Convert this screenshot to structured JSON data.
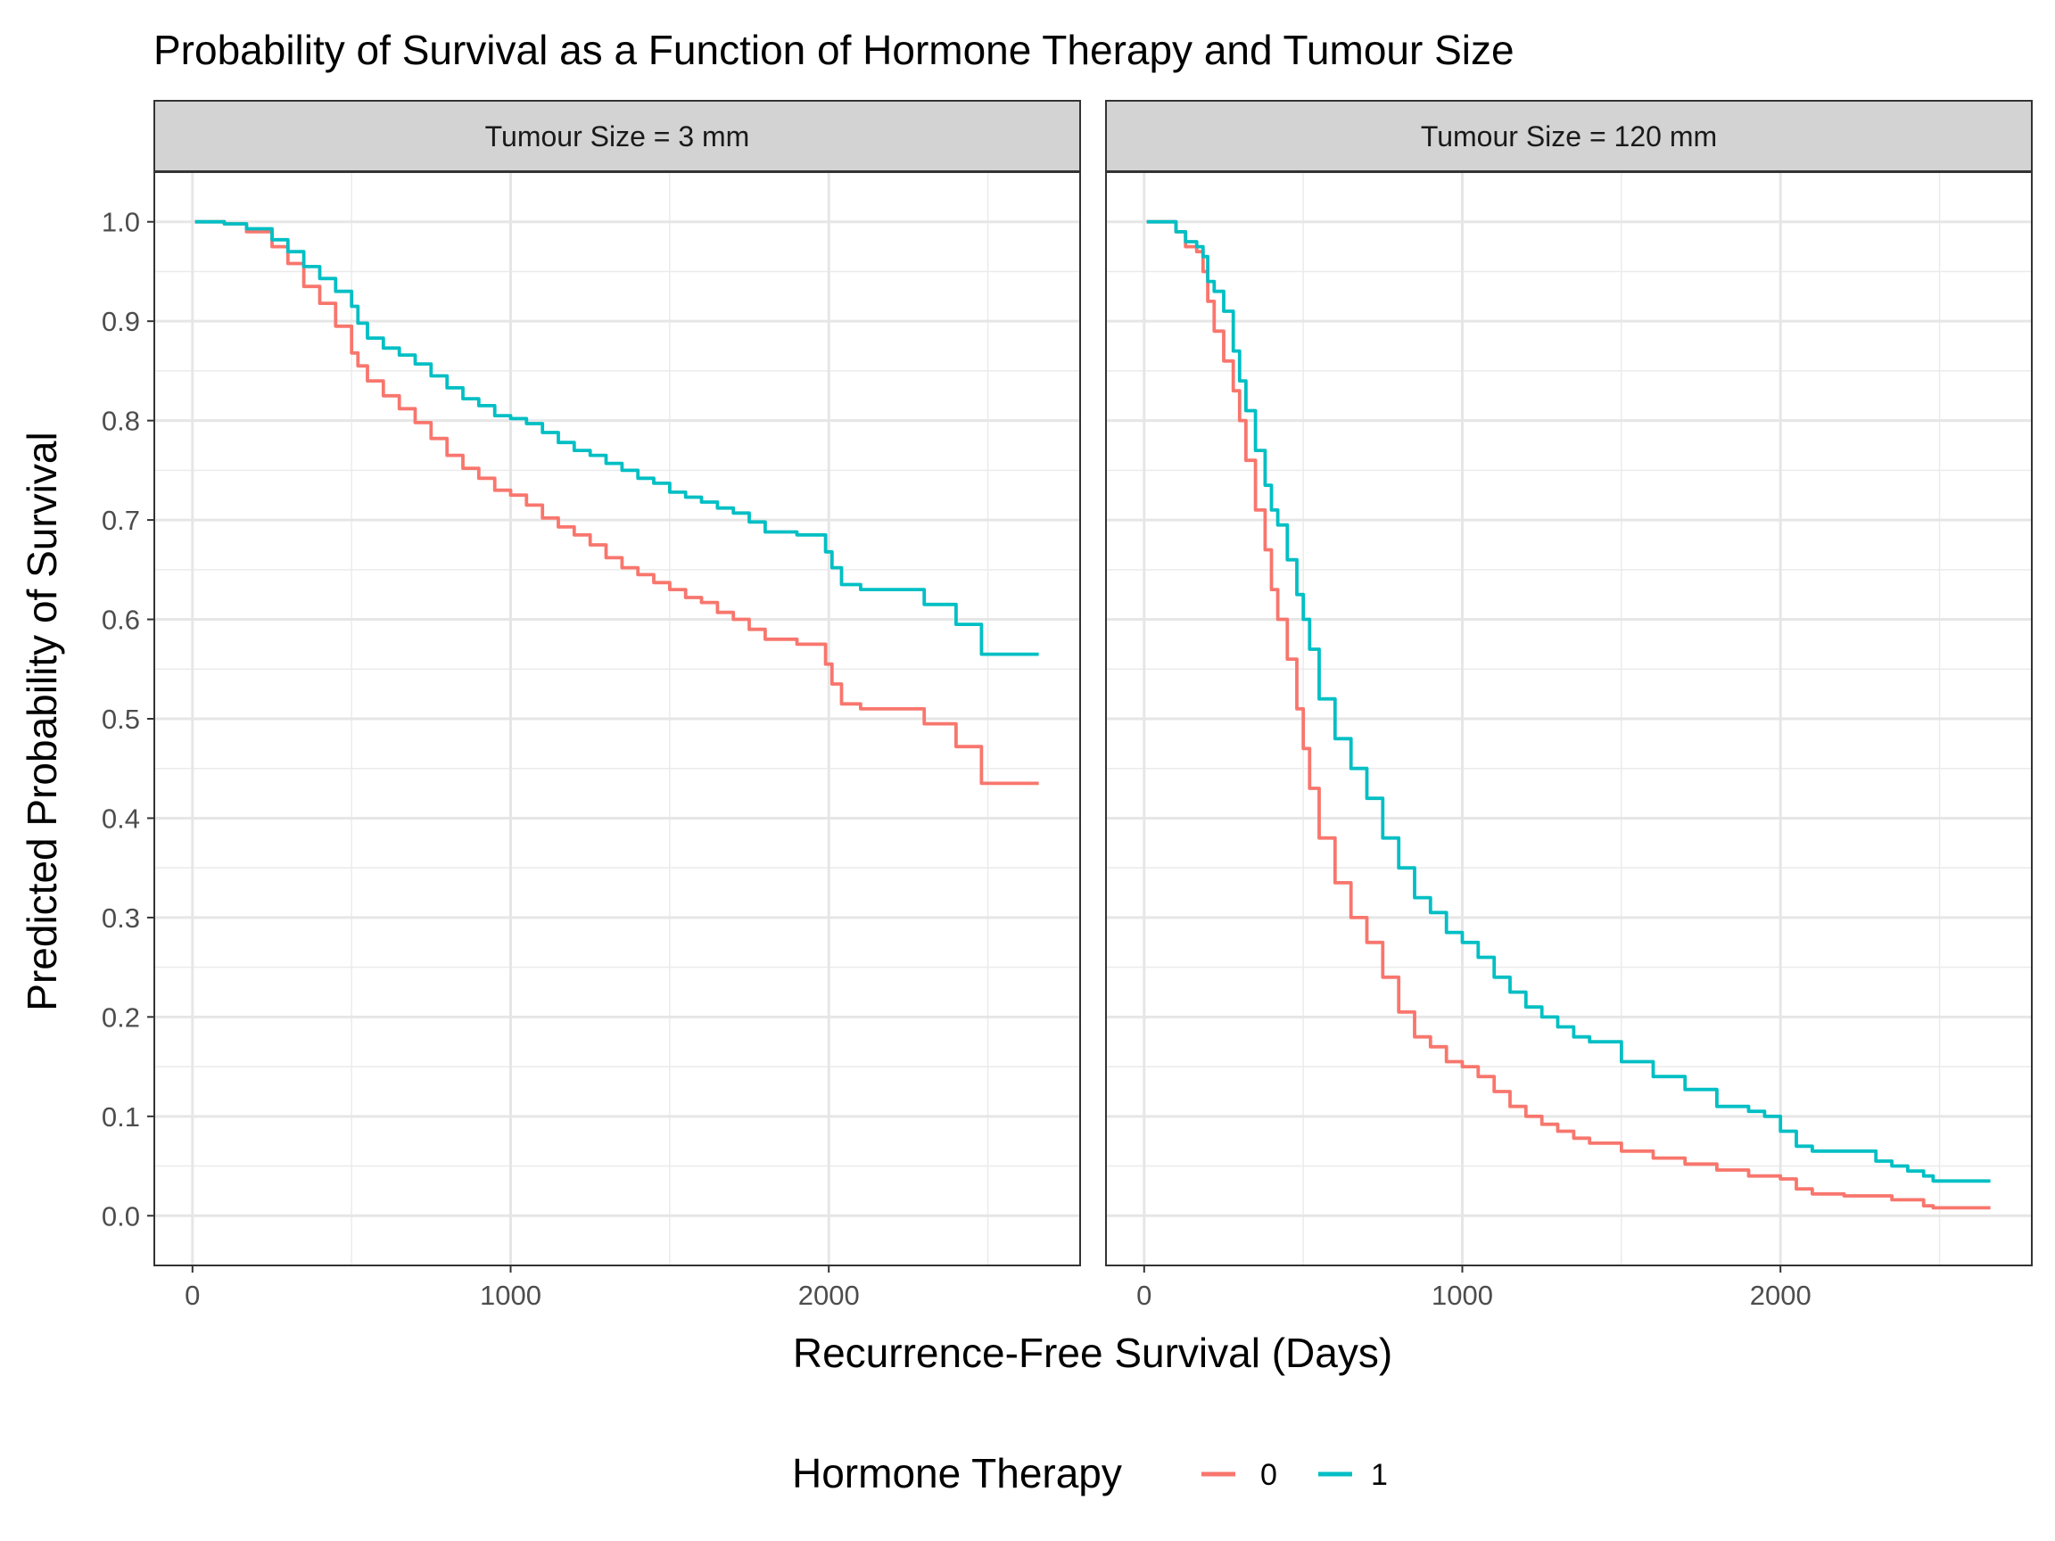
{
  "chart_data": {
    "type": "line",
    "title": "Probability of Survival as a Function of Hormone Therapy and Tumour Size",
    "xlabel": "Recurrence-Free Survival (Days)",
    "ylabel": "Predicted Probability of Survival",
    "xlim": [
      -120,
      2790
    ],
    "ylim": [
      -0.05,
      1.05
    ],
    "x_ticks": [
      "0",
      "1000",
      "2000"
    ],
    "y_ticks": [
      "0.0",
      "0.1",
      "0.2",
      "0.3",
      "0.4",
      "0.5",
      "0.6",
      "0.7",
      "0.8",
      "0.9",
      "1.0"
    ],
    "grid": true,
    "legend": {
      "title": "Hormone Therapy",
      "position": "bottom",
      "entries": [
        {
          "label": "0",
          "color": "#F8766D"
        },
        {
          "label": "1",
          "color": "#00BFC4"
        }
      ]
    },
    "panels": [
      {
        "strip": "Tumour Size = 3 mm",
        "series": [
          {
            "name": "0",
            "color": "#F8766D",
            "x": [
              8,
              100,
              170,
              250,
              300,
              350,
              400,
              450,
              500,
              520,
              550,
              600,
              650,
              700,
              750,
              800,
              850,
              900,
              950,
              1000,
              1050,
              1100,
              1150,
              1200,
              1250,
              1300,
              1350,
              1400,
              1450,
              1500,
              1550,
              1600,
              1650,
              1700,
              1750,
              1800,
              1850,
              1900,
              1950,
              1990,
              2010,
              2040,
              2100,
              2200,
              2300,
              2350,
              2400,
              2450,
              2480,
              2660
            ],
            "y": [
              1.0,
              0.998,
              0.99,
              0.975,
              0.958,
              0.935,
              0.918,
              0.895,
              0.868,
              0.855,
              0.84,
              0.825,
              0.812,
              0.798,
              0.782,
              0.765,
              0.752,
              0.742,
              0.73,
              0.725,
              0.715,
              0.702,
              0.693,
              0.685,
              0.675,
              0.662,
              0.652,
              0.645,
              0.637,
              0.63,
              0.622,
              0.617,
              0.607,
              0.6,
              0.59,
              0.58,
              0.58,
              0.575,
              0.575,
              0.555,
              0.535,
              0.515,
              0.51,
              0.51,
              0.495,
              0.495,
              0.472,
              0.472,
              0.435,
              0.435
            ]
          },
          {
            "name": "1",
            "color": "#00BFC4",
            "x": [
              8,
              100,
              170,
              250,
              300,
              350,
              400,
              450,
              500,
              520,
              550,
              600,
              650,
              700,
              750,
              800,
              850,
              900,
              950,
              1000,
              1050,
              1100,
              1150,
              1200,
              1250,
              1300,
              1350,
              1400,
              1450,
              1500,
              1550,
              1600,
              1650,
              1700,
              1750,
              1800,
              1850,
              1900,
              1950,
              1990,
              2010,
              2040,
              2100,
              2200,
              2300,
              2350,
              2400,
              2450,
              2480,
              2660
            ],
            "y": [
              1.0,
              0.998,
              0.993,
              0.982,
              0.97,
              0.955,
              0.943,
              0.93,
              0.915,
              0.898,
              0.883,
              0.873,
              0.866,
              0.857,
              0.845,
              0.833,
              0.822,
              0.815,
              0.805,
              0.802,
              0.797,
              0.788,
              0.778,
              0.77,
              0.765,
              0.757,
              0.75,
              0.742,
              0.737,
              0.728,
              0.723,
              0.718,
              0.712,
              0.707,
              0.698,
              0.688,
              0.688,
              0.685,
              0.685,
              0.668,
              0.652,
              0.635,
              0.63,
              0.63,
              0.615,
              0.615,
              0.595,
              0.595,
              0.565,
              0.565
            ]
          }
        ]
      },
      {
        "strip": "Tumour Size = 120 mm",
        "series": [
          {
            "name": "0",
            "color": "#F8766D",
            "x": [
              8,
              100,
              130,
              165,
              185,
              200,
              220,
              250,
              280,
              300,
              320,
              350,
              380,
              400,
              420,
              450,
              480,
              500,
              520,
              550,
              600,
              650,
              700,
              750,
              800,
              850,
              900,
              950,
              1000,
              1050,
              1100,
              1150,
              1200,
              1250,
              1300,
              1350,
              1400,
              1500,
              1600,
              1700,
              1800,
              1900,
              1950,
              2000,
              2050,
              2100,
              2200,
              2300,
              2350,
              2400,
              2450,
              2480,
              2660
            ],
            "y": [
              1.0,
              0.99,
              0.975,
              0.97,
              0.95,
              0.92,
              0.89,
              0.86,
              0.83,
              0.8,
              0.76,
              0.71,
              0.67,
              0.63,
              0.6,
              0.56,
              0.51,
              0.47,
              0.43,
              0.38,
              0.335,
              0.3,
              0.275,
              0.24,
              0.205,
              0.18,
              0.17,
              0.155,
              0.15,
              0.14,
              0.125,
              0.11,
              0.1,
              0.092,
              0.085,
              0.078,
              0.073,
              0.065,
              0.058,
              0.052,
              0.046,
              0.04,
              0.04,
              0.037,
              0.027,
              0.022,
              0.02,
              0.02,
              0.016,
              0.016,
              0.01,
              0.008,
              0.008
            ]
          },
          {
            "name": "1",
            "color": "#00BFC4",
            "x": [
              8,
              100,
              130,
              165,
              185,
              200,
              220,
              250,
              280,
              300,
              320,
              350,
              380,
              400,
              420,
              450,
              480,
              500,
              520,
              550,
              600,
              650,
              700,
              750,
              800,
              850,
              900,
              950,
              1000,
              1050,
              1100,
              1150,
              1200,
              1250,
              1300,
              1350,
              1400,
              1500,
              1600,
              1700,
              1800,
              1900,
              1950,
              2000,
              2050,
              2100,
              2200,
              2300,
              2350,
              2400,
              2450,
              2480,
              2660
            ],
            "y": [
              1.0,
              0.99,
              0.98,
              0.975,
              0.965,
              0.94,
              0.93,
              0.91,
              0.87,
              0.84,
              0.81,
              0.77,
              0.735,
              0.71,
              0.695,
              0.66,
              0.625,
              0.6,
              0.57,
              0.52,
              0.48,
              0.45,
              0.42,
              0.38,
              0.35,
              0.32,
              0.305,
              0.285,
              0.275,
              0.26,
              0.24,
              0.225,
              0.21,
              0.2,
              0.19,
              0.18,
              0.175,
              0.155,
              0.14,
              0.127,
              0.11,
              0.105,
              0.1,
              0.085,
              0.07,
              0.065,
              0.065,
              0.055,
              0.05,
              0.045,
              0.04,
              0.035,
              0.035
            ]
          }
        ]
      }
    ]
  }
}
